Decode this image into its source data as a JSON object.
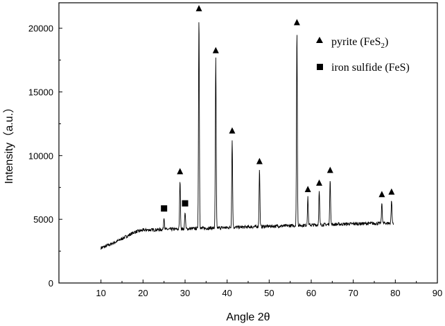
{
  "chart_data": {
    "type": "line",
    "title": "",
    "xlabel": "Angle 2θ",
    "ylabel": "Intensity（a.u.）",
    "xlim": [
      0,
      90
    ],
    "ylim": [
      0,
      22000
    ],
    "x_ticks": [
      10,
      20,
      30,
      40,
      50,
      60,
      70,
      80,
      90
    ],
    "y_ticks": [
      0,
      5000,
      10000,
      15000,
      20000
    ],
    "grid": false,
    "legend_position": "top-right",
    "legend": [
      {
        "marker": "triangle",
        "label": "pyrite (FeS",
        "sub": "2",
        "suffix": ")"
      },
      {
        "marker": "square",
        "label": "iron sulfide (FeS)"
      }
    ],
    "baseline": [
      [
        10,
        2750
      ],
      [
        12,
        3000
      ],
      [
        14,
        3300
      ],
      [
        16,
        3650
      ],
      [
        18,
        4000
      ],
      [
        20,
        4150
      ],
      [
        25,
        4200
      ],
      [
        30,
        4250
      ],
      [
        40,
        4350
      ],
      [
        50,
        4450
      ],
      [
        60,
        4550
      ],
      [
        70,
        4650
      ],
      [
        80,
        4700
      ]
    ],
    "series": [
      {
        "name": "pyrite (FeS2)",
        "marker": "triangle",
        "peaks": [
          {
            "x": 28.8,
            "y": 8100
          },
          {
            "x": 33.3,
            "y": 20900
          },
          {
            "x": 37.3,
            "y": 17600
          },
          {
            "x": 41.2,
            "y": 11300
          },
          {
            "x": 47.7,
            "y": 8900
          },
          {
            "x": 56.6,
            "y": 19800
          },
          {
            "x": 59.2,
            "y": 6700
          },
          {
            "x": 61.9,
            "y": 7200
          },
          {
            "x": 64.5,
            "y": 8200
          },
          {
            "x": 76.8,
            "y": 6300
          },
          {
            "x": 79.1,
            "y": 6500
          }
        ]
      },
      {
        "name": "iron sulfide (FeS)",
        "marker": "square",
        "peaks": [
          {
            "x": 25.0,
            "y": 5200
          },
          {
            "x": 30.0,
            "y": 5600
          }
        ]
      }
    ]
  }
}
